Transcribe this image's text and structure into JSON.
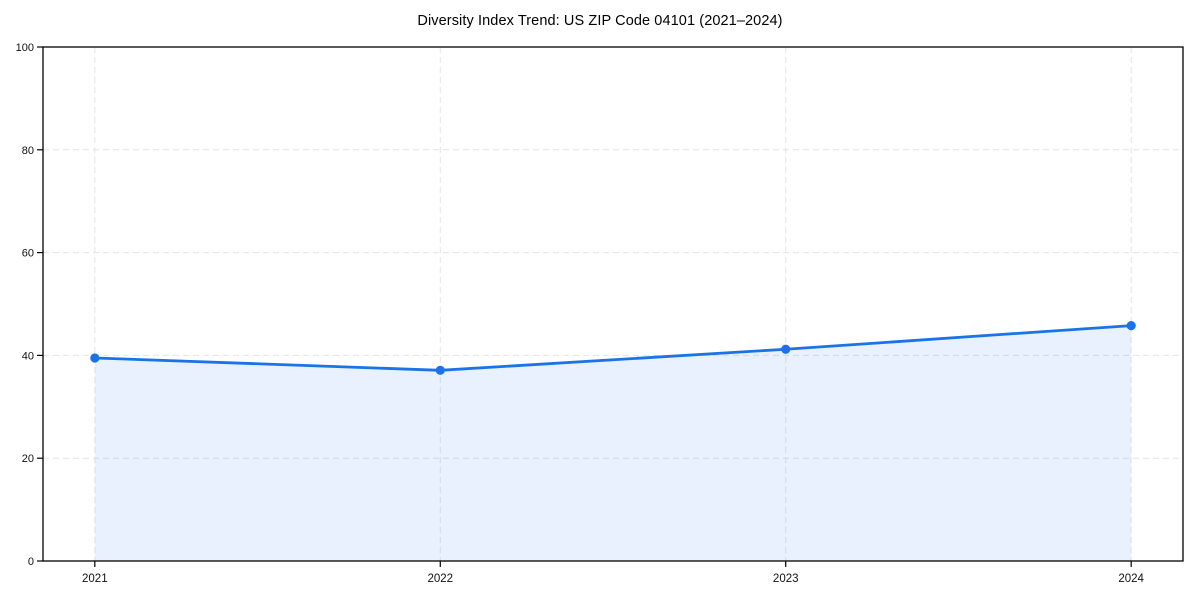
{
  "page": {
    "background": "#ffffff"
  },
  "chart_data": {
    "type": "line",
    "title": "Diversity Index Trend: US ZIP Code 04101 (2021–2024)",
    "x": [
      "2021",
      "2022",
      "2023",
      "2024"
    ],
    "series": [
      {
        "name": "Diversity Index",
        "values": [
          39.5,
          37.1,
          41.2,
          45.8
        ]
      }
    ],
    "xlabel": "",
    "ylabel": "",
    "ylim": [
      0,
      100
    ],
    "yticks": [
      0,
      20,
      40,
      60,
      80,
      100
    ],
    "grid": true,
    "grid_style": "dashed",
    "legend": "none",
    "area_fill": true,
    "markers": true,
    "colors": {
      "line": "#1a73e8",
      "fill_opacity": 0.1,
      "grid": "#e4e4e4",
      "spine": "#000000",
      "tick_text": "#111111"
    }
  }
}
